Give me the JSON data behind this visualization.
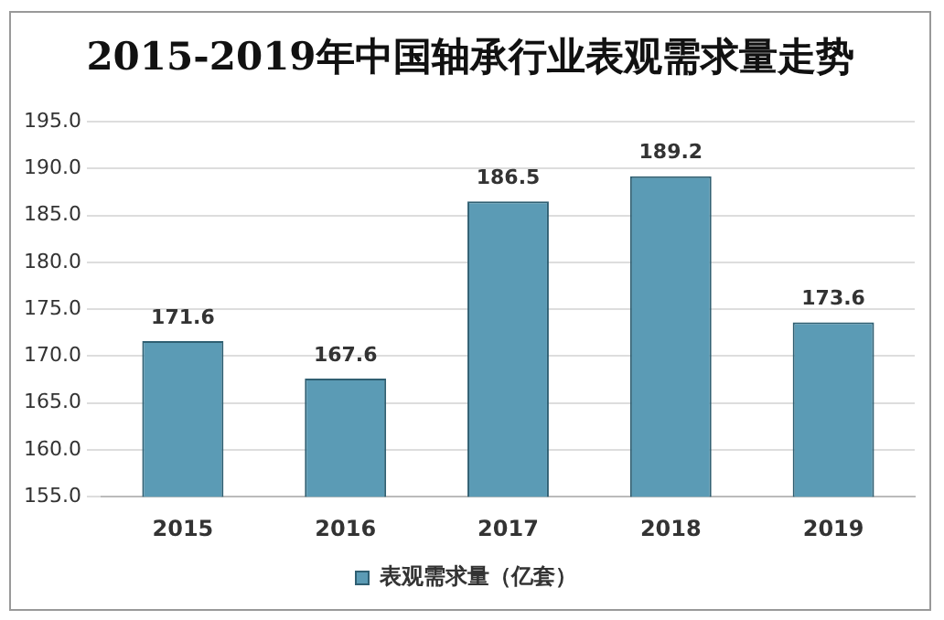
{
  "chart_data": {
    "type": "bar",
    "title": "2015-2019年中国轴承行业表观需求量走势",
    "categories": [
      "2015",
      "2016",
      "2017",
      "2018",
      "2019"
    ],
    "series": [
      {
        "name": "表观需求量（亿套）",
        "color": "#5b9bb5",
        "values": [
          171.6,
          167.6,
          186.5,
          189.2,
          173.6
        ]
      }
    ],
    "ylim": [
      155,
      195
    ],
    "yticks": [
      {
        "value": 155,
        "label": "155.0"
      },
      {
        "value": 160,
        "label": "160.0"
      },
      {
        "value": 165,
        "label": "165.0"
      },
      {
        "value": 170,
        "label": "170.0"
      },
      {
        "value": 175,
        "label": "175.0"
      },
      {
        "value": 180,
        "label": "180.0"
      },
      {
        "value": 185,
        "label": "185.0"
      },
      {
        "value": 190,
        "label": "190.0"
      },
      {
        "value": 195,
        "label": "195.0"
      }
    ],
    "grid": "y",
    "legend": "bottom",
    "data_labels": true
  }
}
